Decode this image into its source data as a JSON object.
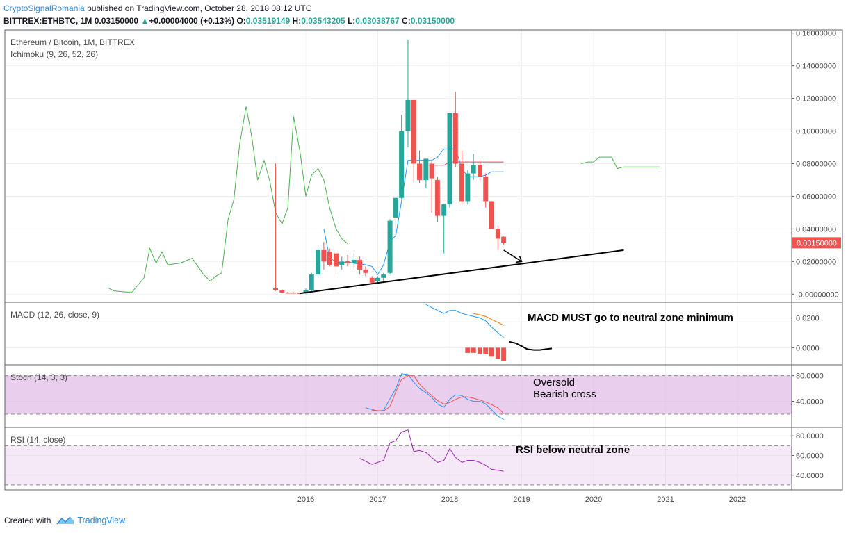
{
  "header": {
    "publisher": "CryptoSignalRomania",
    "published_text": " published on TradingView.com, October 28, 2018 08:12 UTC",
    "symbol": "BITTREX:ETHBTC, 1M",
    "last": "0.03150000",
    "change_arrow": "▲",
    "change": "+0.00004000 (+0.13%)",
    "o_label": "O:",
    "o": "0.03519149",
    "h_label": "H:",
    "h": "0.03543205",
    "l_label": "L:",
    "l": "0.03038767",
    "c_label": "C:",
    "c": "0.03150000"
  },
  "footer": {
    "created_with": "Created with",
    "brand": "TradingView"
  },
  "colors": {
    "up": "#26a69a",
    "down": "#ef5350",
    "tenkan": "#2196f3",
    "kijun": "#d1495b",
    "chikou": "#4caf50",
    "macd": "#2196f3",
    "signal": "#ff6d00",
    "stoch_k": "#2196f3",
    "stoch_d": "#ef5350",
    "rsi": "#9c27b0",
    "band": "#e1bee7"
  },
  "chart_data": [
    {
      "type": "candlestick",
      "title": "Ethereum / Bitcoin, 1M, BITTREX",
      "indicator": "Ichimoku (9, 26, 52, 26)",
      "x_ticks": [
        "2016",
        "2017",
        "2018",
        "2019",
        "2020",
        "2021",
        "2022"
      ],
      "y_ticks": [
        "0.16000000",
        "0.14000000",
        "0.12000000",
        "0.10000000",
        "0.08000000",
        "0.06000000",
        "0.04000000",
        "0.02000000",
        "-0.00000000"
      ],
      "ylim": [
        -0.005,
        0.162
      ],
      "price_label": "0.03150000",
      "candles": [
        {
          "t": 2015.58,
          "o": 0.0035,
          "h": 0.08,
          "l": 0.002,
          "c": 0.0025
        },
        {
          "t": 2015.67,
          "o": 0.0025,
          "h": 0.003,
          "l": 0.001,
          "c": 0.001
        },
        {
          "t": 2015.75,
          "o": 0.001,
          "h": 0.0015,
          "l": 0.0008,
          "c": 0.0008
        },
        {
          "t": 2015.83,
          "o": 0.001,
          "h": 0.0012,
          "l": 0.0005,
          "c": 0.0005
        },
        {
          "t": 2015.92,
          "o": 0.0008,
          "h": 0.001,
          "l": 0.0,
          "c": 0.0005
        },
        {
          "t": 2016.0,
          "o": 0.0005,
          "h": 0.0035,
          "l": 0.0,
          "c": 0.0025
        },
        {
          "t": 2016.08,
          "o": 0.0025,
          "h": 0.013,
          "l": 0.002,
          "c": 0.012
        },
        {
          "t": 2016.17,
          "o": 0.012,
          "h": 0.03,
          "l": 0.01,
          "c": 0.027
        },
        {
          "t": 2016.25,
          "o": 0.027,
          "h": 0.032,
          "l": 0.015,
          "c": 0.02
        },
        {
          "t": 2016.33,
          "o": 0.026,
          "h": 0.028,
          "l": 0.017,
          "c": 0.018
        },
        {
          "t": 2016.42,
          "o": 0.025,
          "h": 0.026,
          "l": 0.012,
          "c": 0.017
        },
        {
          "t": 2016.5,
          "o": 0.018,
          "h": 0.023,
          "l": 0.015,
          "c": 0.02
        },
        {
          "t": 2016.58,
          "o": 0.02,
          "h": 0.024,
          "l": 0.017,
          "c": 0.019
        },
        {
          "t": 2016.67,
          "o": 0.019,
          "h": 0.025,
          "l": 0.015,
          "c": 0.021
        },
        {
          "t": 2016.75,
          "o": 0.021,
          "h": 0.023,
          "l": 0.012,
          "c": 0.015
        },
        {
          "t": 2016.83,
          "o": 0.015,
          "h": 0.017,
          "l": 0.011,
          "c": 0.013
        },
        {
          "t": 2016.92,
          "o": 0.01,
          "h": 0.011,
          "l": 0.007,
          "c": 0.007
        },
        {
          "t": 2017.0,
          "o": 0.008,
          "h": 0.011,
          "l": 0.007,
          "c": 0.01
        },
        {
          "t": 2017.08,
          "o": 0.01,
          "h": 0.013,
          "l": 0.008,
          "c": 0.012
        },
        {
          "t": 2017.17,
          "o": 0.013,
          "h": 0.046,
          "l": 0.012,
          "c": 0.045
        },
        {
          "t": 2017.25,
          "o": 0.047,
          "h": 0.06,
          "l": 0.035,
          "c": 0.059
        },
        {
          "t": 2017.33,
          "o": 0.059,
          "h": 0.11,
          "l": 0.058,
          "c": 0.1
        },
        {
          "t": 2017.42,
          "o": 0.1,
          "h": 0.156,
          "l": 0.09,
          "c": 0.119
        },
        {
          "t": 2017.5,
          "o": 0.119,
          "h": 0.119,
          "l": 0.068,
          "c": 0.08
        },
        {
          "t": 2017.58,
          "o": 0.08,
          "h": 0.088,
          "l": 0.068,
          "c": 0.07
        },
        {
          "t": 2017.67,
          "o": 0.07,
          "h": 0.083,
          "l": 0.065,
          "c": 0.083
        },
        {
          "t": 2017.75,
          "o": 0.08,
          "h": 0.082,
          "l": 0.05,
          "c": 0.071
        },
        {
          "t": 2017.83,
          "o": 0.07,
          "h": 0.072,
          "l": 0.044,
          "c": 0.048
        },
        {
          "t": 2017.92,
          "o": 0.048,
          "h": 0.055,
          "l": 0.025,
          "c": 0.055
        },
        {
          "t": 2018.0,
          "o": 0.055,
          "h": 0.11,
          "l": 0.053,
          "c": 0.111
        },
        {
          "t": 2018.08,
          "o": 0.111,
          "h": 0.124,
          "l": 0.078,
          "c": 0.08
        },
        {
          "t": 2018.17,
          "o": 0.08,
          "h": 0.088,
          "l": 0.055,
          "c": 0.057
        },
        {
          "t": 2018.25,
          "o": 0.057,
          "h": 0.076,
          "l": 0.055,
          "c": 0.074
        },
        {
          "t": 2018.33,
          "o": 0.074,
          "h": 0.086,
          "l": 0.07,
          "c": 0.079
        },
        {
          "t": 2018.42,
          "o": 0.079,
          "h": 0.082,
          "l": 0.07,
          "c": 0.072
        },
        {
          "t": 2018.5,
          "o": 0.072,
          "h": 0.074,
          "l": 0.053,
          "c": 0.057
        },
        {
          "t": 2018.58,
          "o": 0.057,
          "h": 0.057,
          "l": 0.04,
          "c": 0.04
        },
        {
          "t": 2018.67,
          "o": 0.04,
          "h": 0.042,
          "l": 0.027,
          "c": 0.034
        },
        {
          "t": 2018.75,
          "o": 0.0352,
          "h": 0.0354,
          "l": 0.0304,
          "c": 0.0315
        }
      ],
      "tenkan": [
        [
          2016.25,
          0.04
        ],
        [
          2016.33,
          0.022
        ],
        [
          2016.42,
          0.02
        ],
        [
          2016.5,
          0.019
        ],
        [
          2016.58,
          0.02
        ],
        [
          2016.67,
          0.019
        ],
        [
          2016.83,
          0.018
        ],
        [
          2016.92,
          0.017
        ],
        [
          2017.0,
          0.012
        ],
        [
          2017.08,
          0.018
        ],
        [
          2017.17,
          0.032
        ],
        [
          2017.25,
          0.036
        ],
        [
          2017.33,
          0.057
        ],
        [
          2017.42,
          0.082
        ],
        [
          2017.5,
          0.082
        ],
        [
          2017.58,
          0.082
        ],
        [
          2017.67,
          0.082
        ],
        [
          2017.75,
          0.082
        ],
        [
          2017.83,
          0.084
        ],
        [
          2017.92,
          0.089
        ],
        [
          2018.0,
          0.089
        ],
        [
          2018.08,
          0.089
        ],
        [
          2018.17,
          0.077
        ],
        [
          2018.25,
          0.072
        ],
        [
          2018.33,
          0.072
        ],
        [
          2018.42,
          0.072
        ],
        [
          2018.5,
          0.073
        ],
        [
          2018.58,
          0.075
        ],
        [
          2018.67,
          0.075
        ],
        [
          2018.75,
          0.075
        ]
      ],
      "kijun": [
        [
          2017.67,
          0.079
        ],
        [
          2017.92,
          0.079
        ],
        [
          2018.0,
          0.081
        ],
        [
          2018.75,
          0.081
        ]
      ],
      "chikou": [
        [
          2013.25,
          0.004
        ],
        [
          2013.33,
          0.002
        ],
        [
          2013.58,
          0.001
        ],
        [
          2013.75,
          0.01
        ],
        [
          2013.83,
          0.028
        ],
        [
          2013.92,
          0.019
        ],
        [
          2014.0,
          0.026
        ],
        [
          2014.08,
          0.018
        ],
        [
          2014.25,
          0.019
        ],
        [
          2014.42,
          0.022
        ],
        [
          2014.58,
          0.012
        ],
        [
          2014.67,
          0.008
        ],
        [
          2014.75,
          0.011
        ],
        [
          2014.83,
          0.013
        ],
        [
          2014.92,
          0.046
        ],
        [
          2015.0,
          0.058
        ],
        [
          2015.08,
          0.092
        ],
        [
          2015.17,
          0.115
        ],
        [
          2015.25,
          0.096
        ],
        [
          2015.33,
          0.07
        ],
        [
          2015.42,
          0.082
        ],
        [
          2015.5,
          0.069
        ],
        [
          2015.58,
          0.05
        ],
        [
          2015.67,
          0.043
        ],
        [
          2015.75,
          0.053
        ],
        [
          2015.83,
          0.109
        ],
        [
          2015.92,
          0.087
        ],
        [
          2016.0,
          0.06
        ],
        [
          2016.08,
          0.073
        ],
        [
          2016.17,
          0.077
        ],
        [
          2016.25,
          0.07
        ],
        [
          2016.33,
          0.053
        ],
        [
          2016.42,
          0.04
        ],
        [
          2016.5,
          0.034
        ],
        [
          2016.58,
          0.031
        ]
      ],
      "chikou_future": [
        [
          2019.83,
          0.08
        ],
        [
          2019.92,
          0.081
        ],
        [
          2020.0,
          0.081
        ],
        [
          2020.08,
          0.084
        ],
        [
          2020.25,
          0.084
        ],
        [
          2020.33,
          0.077
        ],
        [
          2020.42,
          0.078
        ],
        [
          2020.92,
          0.078
        ]
      ],
      "trendline": [
        [
          2015.92,
          0.0005
        ],
        [
          2020.42,
          0.027
        ]
      ],
      "arrow": [
        [
          2018.75,
          0.027
        ],
        [
          2019.0,
          0.02
        ]
      ]
    },
    {
      "type": "line",
      "indicator": "MACD (12, 26, close, 9)",
      "y_ticks": [
        "0.0200",
        "0.0000"
      ],
      "ylim": [
        -0.0115,
        0.0305
      ],
      "annotation": "MACD MUST go to neutral zone minimum",
      "macd": [
        [
          2017.67,
          0.029
        ],
        [
          2017.83,
          0.025
        ],
        [
          2017.92,
          0.023
        ],
        [
          2018.0,
          0.025
        ],
        [
          2018.08,
          0.025
        ],
        [
          2018.17,
          0.023
        ],
        [
          2018.25,
          0.022
        ],
        [
          2018.33,
          0.021
        ],
        [
          2018.42,
          0.02
        ],
        [
          2018.5,
          0.018
        ],
        [
          2018.58,
          0.014
        ],
        [
          2018.67,
          0.01
        ],
        [
          2018.75,
          0.007
        ]
      ],
      "signal": [
        [
          2018.33,
          0.023
        ],
        [
          2018.42,
          0.022
        ],
        [
          2018.5,
          0.021
        ],
        [
          2018.58,
          0.019
        ],
        [
          2018.67,
          0.017
        ],
        [
          2018.75,
          0.015
        ]
      ],
      "histogram": [
        [
          2018.25,
          -0.0035
        ],
        [
          2018.33,
          -0.0035
        ],
        [
          2018.42,
          -0.004
        ],
        [
          2018.5,
          -0.0045
        ],
        [
          2018.58,
          -0.006
        ],
        [
          2018.67,
          -0.0075
        ],
        [
          2018.75,
          -0.009
        ]
      ],
      "projection": [
        [
          2018.83,
          0.004
        ],
        [
          2018.92,
          0.003
        ],
        [
          2019.0,
          0.001
        ],
        [
          2019.08,
          -0.001
        ],
        [
          2019.17,
          -0.0015
        ],
        [
          2019.25,
          -0.0015
        ],
        [
          2019.33,
          -0.001
        ],
        [
          2019.42,
          -0.0005
        ]
      ]
    },
    {
      "type": "line",
      "indicator": "Stoch (14, 3, 3)",
      "y_ticks": [
        "80.0000",
        "40.0000"
      ],
      "ylim": [
        -0.6,
        97
      ],
      "bands": [
        20,
        80
      ],
      "annotation_lines": [
        "Oversold",
        "Bearish cross"
      ],
      "k": [
        [
          2016.83,
          30
        ],
        [
          2017.0,
          25
        ],
        [
          2017.08,
          26
        ],
        [
          2017.25,
          60
        ],
        [
          2017.33,
          83
        ],
        [
          2017.42,
          82
        ],
        [
          2017.5,
          70
        ],
        [
          2017.58,
          60
        ],
        [
          2017.67,
          54
        ],
        [
          2017.75,
          46
        ],
        [
          2017.83,
          36
        ],
        [
          2017.92,
          31
        ],
        [
          2018.0,
          43
        ],
        [
          2018.08,
          50
        ],
        [
          2018.17,
          49
        ],
        [
          2018.25,
          43
        ],
        [
          2018.33,
          40
        ],
        [
          2018.42,
          40
        ],
        [
          2018.5,
          36
        ],
        [
          2018.58,
          27
        ],
        [
          2018.67,
          17
        ],
        [
          2018.75,
          12
        ]
      ],
      "d": [
        [
          2016.92,
          26
        ],
        [
          2017.08,
          25
        ],
        [
          2017.17,
          32
        ],
        [
          2017.25,
          55
        ],
        [
          2017.33,
          74
        ],
        [
          2017.42,
          80
        ],
        [
          2017.5,
          80
        ],
        [
          2017.58,
          67
        ],
        [
          2017.67,
          57
        ],
        [
          2017.75,
          49
        ],
        [
          2017.83,
          41
        ],
        [
          2017.92,
          36
        ],
        [
          2018.0,
          38
        ],
        [
          2018.08,
          43
        ],
        [
          2018.17,
          47
        ],
        [
          2018.25,
          47
        ],
        [
          2018.33,
          45
        ],
        [
          2018.42,
          42
        ],
        [
          2018.5,
          39
        ],
        [
          2018.58,
          35
        ],
        [
          2018.67,
          30
        ],
        [
          2018.75,
          21
        ]
      ]
    },
    {
      "type": "line",
      "indicator": "RSI (14, close)",
      "y_ticks": [
        "80.0000",
        "60.0000",
        "40.0000"
      ],
      "ylim": [
        25,
        88.6
      ],
      "bands": [
        30,
        70
      ],
      "annotation": "RSI below neutral zone",
      "rsi": [
        [
          2016.75,
          57
        ],
        [
          2016.92,
          51
        ],
        [
          2017.08,
          55
        ],
        [
          2017.17,
          73
        ],
        [
          2017.25,
          75
        ],
        [
          2017.33,
          84
        ],
        [
          2017.42,
          86
        ],
        [
          2017.5,
          64
        ],
        [
          2017.58,
          65
        ],
        [
          2017.67,
          63
        ],
        [
          2017.75,
          58
        ],
        [
          2017.83,
          53
        ],
        [
          2017.92,
          55
        ],
        [
          2018.0,
          67
        ],
        [
          2018.08,
          58
        ],
        [
          2018.17,
          53
        ],
        [
          2018.25,
          55
        ],
        [
          2018.33,
          55
        ],
        [
          2018.42,
          53
        ],
        [
          2018.5,
          50
        ],
        [
          2018.58,
          46
        ],
        [
          2018.67,
          45
        ],
        [
          2018.75,
          44
        ]
      ]
    }
  ]
}
